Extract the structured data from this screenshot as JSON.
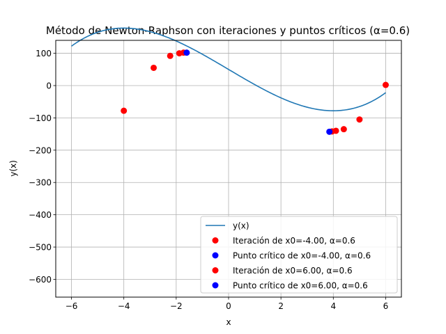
{
  "chart_data": {
    "type": "line",
    "title": "Método de Newton-Raphson con iteraciones y puntos críticos (α=0.6)",
    "xlabel": "x",
    "ylabel": "y(x)",
    "xlim": [
      -6.6,
      6.6
    ],
    "ylim": [
      -655,
      140
    ],
    "x_ticks": [
      -6,
      -4,
      -2,
      0,
      2,
      4,
      6
    ],
    "y_ticks": [
      100,
      0,
      -100,
      -200,
      -300,
      -400,
      -500,
      -600
    ],
    "grid": true,
    "legend_position": "lower-right",
    "curve": {
      "name": "y(x)",
      "color": "#1f77b4",
      "x_range": [
        -6,
        6
      ],
      "coefficients_cubic": [
        1,
        0,
        -48,
        50
      ]
    },
    "series": [
      {
        "name": "Iteración de x0=-4.00, α=0.6",
        "color": "#ff0000",
        "points": [
          [
            -4.0,
            -78
          ],
          [
            -2.86,
            55
          ],
          [
            -2.23,
            92
          ],
          [
            -1.88,
            100
          ],
          [
            -1.72,
            102
          ]
        ]
      },
      {
        "name": "Punto crítico de x0=-4.00, α=0.6",
        "color": "#0000ff",
        "points": [
          [
            -1.6,
            102
          ]
        ]
      },
      {
        "name": "Iteración de x0=6.00, α=0.6",
        "color": "#ff0000",
        "points": [
          [
            6.0,
            2
          ],
          [
            5.0,
            -105
          ],
          [
            4.4,
            -135
          ],
          [
            4.1,
            -140
          ],
          [
            3.95,
            -142
          ]
        ]
      },
      {
        "name": "Punto crítico de x0=6.00, α=0.6",
        "color": "#0000ff",
        "points": [
          [
            3.85,
            -143
          ]
        ]
      }
    ]
  }
}
